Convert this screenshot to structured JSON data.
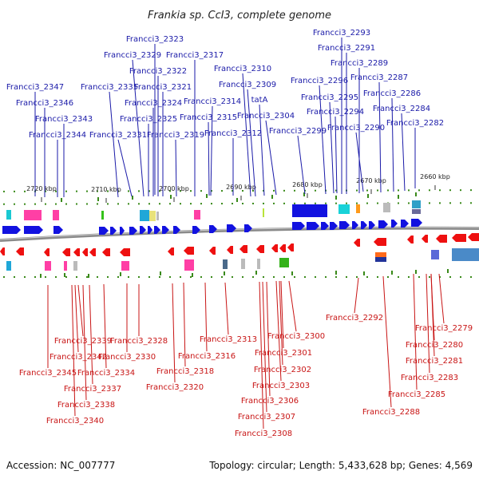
{
  "title": "Frankia sp. CcI3, complete genome",
  "footer": {
    "accession": "Accession: NC_007777",
    "summary": "Topology: circular; Length: 5,433,628 bp; Genes: 4,569"
  },
  "ticks": [
    "2720 kbp",
    "2710 kbp",
    "2700 kbp",
    "2690 kbp",
    "2680 kbp",
    "2670 kbp",
    "2660 kbp"
  ],
  "colors": {
    "forward": "#1212e0",
    "reverse": "#ee1010",
    "backbone": "#888888",
    "dots": "#3a8a1a",
    "top_label": "#1a1aa8",
    "bottom_label": "#c81414"
  },
  "top_labels": [
    "Francci3_2323",
    "Francci3_2329",
    "Francci3_2317",
    "Francci3_2322",
    "Francci3_2310",
    "Francci3_2347",
    "Francci3_2335",
    "Francci3_2321",
    "Francci3_2309",
    "Francci3_2346",
    "Francci3_2324",
    "Francci3_2314",
    "tatA",
    "Francci3_2343",
    "Francci3_2325",
    "Francci3_2315",
    "Francci3_2304",
    "Francci3_2344",
    "Francci3_2331",
    "Francci3_2319",
    "Francci3_2312",
    "Francci3_2299",
    "Francci3_2293",
    "Francci3_2291",
    "Francci3_2289",
    "Francci3_2296",
    "Francci3_2287",
    "Francci3_2295",
    "Francci3_2286",
    "Francci3_2294",
    "Francci3_2284",
    "Francci3_2290",
    "Francci3_2282"
  ],
  "bottom_labels": [
    "Francci3_2292",
    "Francci3_2300",
    "Francci3_2279",
    "Francci3_2339",
    "Francci3_2328",
    "Francci3_2313",
    "Francci3_2280",
    "Francci3_2342",
    "Francci3_2330",
    "Francci3_2316",
    "Francci3_2301",
    "Francci3_2281",
    "Francci3_2345",
    "Francci3_2334",
    "Francci3_2318",
    "Francci3_2302",
    "Francci3_2283",
    "Francci3_2337",
    "Francci3_2320",
    "Francci3_2303",
    "Francci3_2285",
    "Francci3_2338",
    "Francci3_2306",
    "Francci3_2288",
    "Francci3_2340",
    "Francci3_2307",
    "Francci3_2308"
  ]
}
